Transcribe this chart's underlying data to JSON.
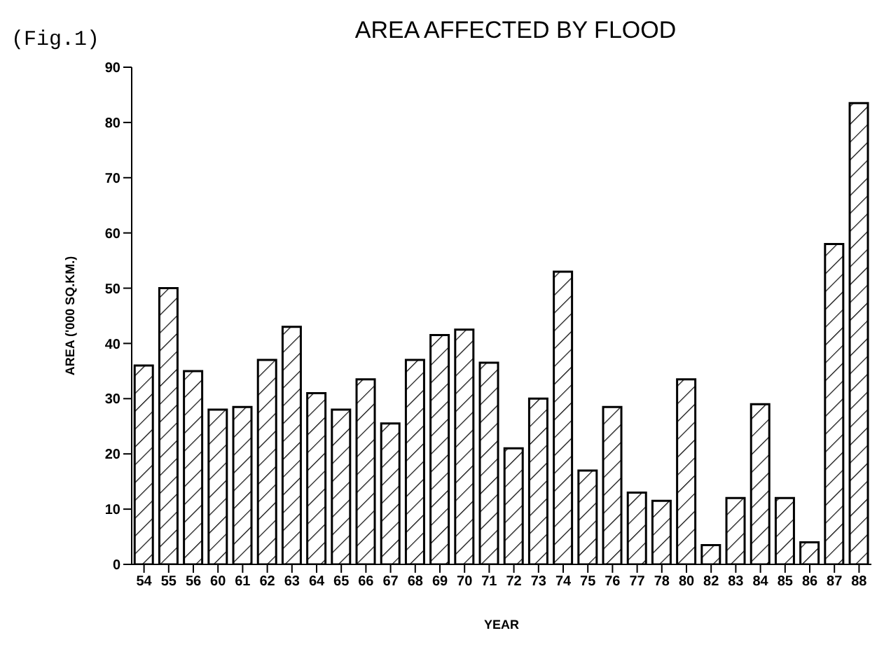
{
  "chart_data": {
    "type": "bar",
    "title": "AREA AFFECTED BY FLOOD",
    "xlabel": "YEAR",
    "ylabel": "AREA ('000 SQ.KM.)",
    "annotations": [
      "(Fig.1)"
    ],
    "categories": [
      "54",
      "55",
      "56",
      "60",
      "61",
      "62",
      "63",
      "64",
      "65",
      "66",
      "67",
      "68",
      "69",
      "70",
      "71",
      "72",
      "73",
      "74",
      "75",
      "76",
      "77",
      "78",
      "80",
      "82",
      "83",
      "84",
      "85",
      "86",
      "87",
      "88"
    ],
    "values": [
      36,
      50,
      35,
      28,
      28.5,
      37,
      43,
      31,
      28,
      33.5,
      25.5,
      37,
      41.5,
      42.5,
      36.5,
      21,
      30,
      53,
      17,
      28.5,
      13,
      11.5,
      33.5,
      3.5,
      12,
      29,
      12,
      4,
      58,
      83.5
    ],
    "color": "#000000",
    "ylim": [
      0,
      90
    ],
    "yticks": [
      0,
      10,
      20,
      30,
      40,
      50,
      60,
      70,
      80,
      90
    ],
    "grid": false,
    "legend": false
  }
}
